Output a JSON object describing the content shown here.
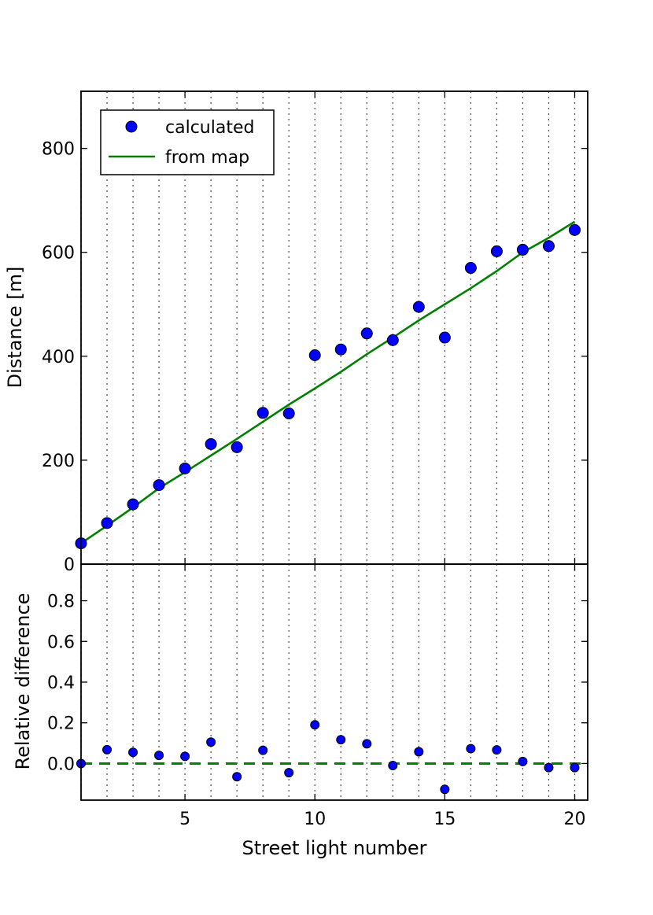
{
  "colors": {
    "marker": "#0000ff",
    "marker_edge": "#000000",
    "line": "#008000",
    "grid": "#555555"
  },
  "chart_data": [
    {
      "type": "scatter",
      "panel": "top",
      "title": "",
      "xlabel": "",
      "ylabel": "Distance [m]",
      "xlim": [
        1,
        20.5
      ],
      "ylim": [
        0,
        910
      ],
      "yticks": [
        0,
        200,
        400,
        600,
        800
      ],
      "xticks": [
        5,
        10,
        15,
        20
      ],
      "grid": "vertical dotted at every integer x",
      "legend": {
        "placement": "top-left",
        "entries": [
          "calculated",
          "from map"
        ]
      },
      "series": [
        {
          "name": "calculated",
          "kind": "scatter",
          "x": [
            1,
            2,
            3,
            4,
            5,
            6,
            7,
            8,
            9,
            10,
            11,
            12,
            13,
            14,
            15,
            16,
            17,
            18,
            19,
            20
          ],
          "y": [
            40,
            79,
            115,
            152,
            184,
            231,
            225,
            291,
            290,
            402,
            413,
            444,
            431,
            495,
            436,
            570,
            602,
            605,
            612,
            643
          ]
        },
        {
          "name": "from map",
          "kind": "line",
          "x": [
            1,
            2,
            3,
            4,
            5,
            6,
            7,
            8,
            9,
            10,
            11,
            12,
            13,
            14,
            15,
            16,
            17,
            18,
            19,
            20
          ],
          "y": [
            40,
            74,
            109,
            146,
            177,
            209,
            241,
            274,
            307,
            338,
            370,
            404,
            436,
            469,
            500,
            531,
            564,
            600,
            628,
            659
          ]
        }
      ]
    },
    {
      "type": "scatter",
      "panel": "bottom",
      "title": "",
      "xlabel": "Street light number",
      "ylabel": "Relative difference",
      "xlim": [
        1,
        20.5
      ],
      "ylim": [
        -0.18,
        0.98
      ],
      "yticks": [
        "0.0",
        "0.2",
        "0.4",
        "0.6",
        "0.8"
      ],
      "xticks": [
        "5",
        "10",
        "15",
        "20"
      ],
      "grid": "vertical dotted at every integer x",
      "series": [
        {
          "kind": "scatter",
          "x": [
            1,
            2,
            3,
            4,
            5,
            6,
            7,
            8,
            9,
            10,
            11,
            12,
            13,
            14,
            15,
            16,
            17,
            18,
            19,
            20
          ],
          "y": [
            0.0,
            0.068,
            0.055,
            0.04,
            0.035,
            0.105,
            -0.065,
            0.065,
            -0.045,
            0.19,
            0.117,
            0.097,
            -0.01,
            0.058,
            -0.127,
            0.073,
            0.067,
            0.01,
            -0.02,
            -0.02
          ]
        },
        {
          "kind": "dashed-line",
          "y": 0.0
        }
      ]
    }
  ]
}
